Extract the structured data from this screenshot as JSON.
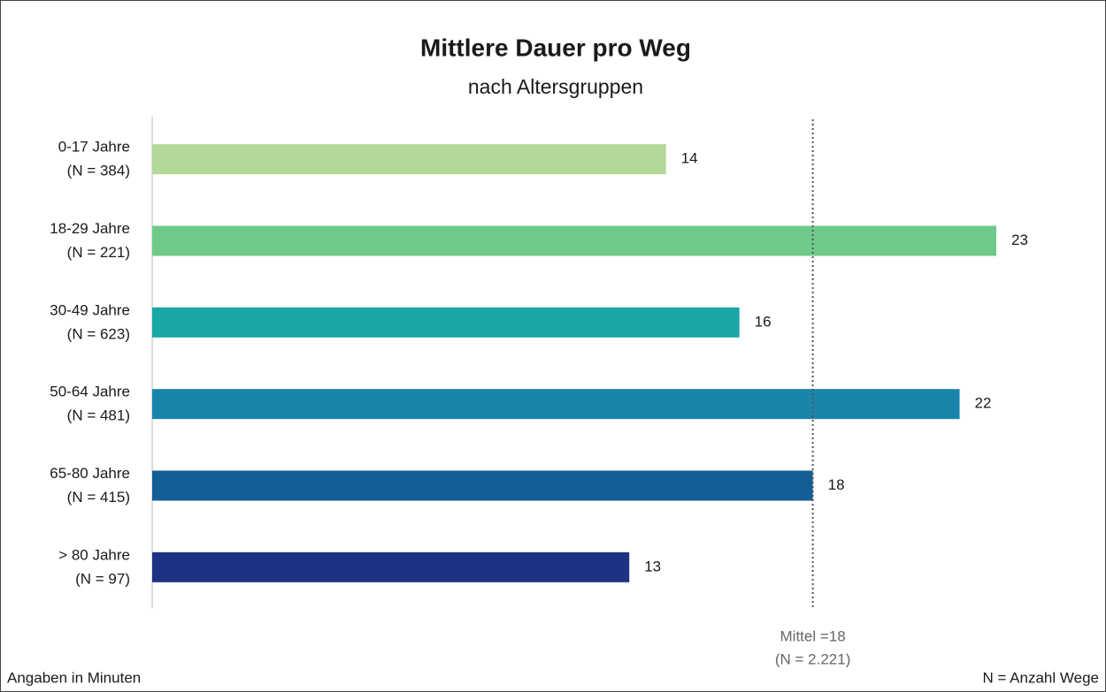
{
  "chart_data": {
    "type": "bar",
    "orientation": "horizontal",
    "title": "Mittlere Dauer pro Weg",
    "subtitle": "nach Altersgruppen",
    "categories": [
      "0-17 Jahre",
      "18-29 Jahre",
      "30-49 Jahre",
      "50-64 Jahre",
      "65-80 Jahre",
      "> 80 Jahre"
    ],
    "category_notes": [
      "(N = 384)",
      "(N = 221)",
      "(N = 623)",
      "(N = 481)",
      "(N = 415)",
      "(N = 97)"
    ],
    "values": [
      14,
      23,
      16,
      22,
      18,
      13
    ],
    "colors": [
      "#b3d898",
      "#6fca8a",
      "#18a6a6",
      "#1a85ab",
      "#145e96",
      "#1d3282"
    ],
    "xlim": [
      0,
      25.7
    ],
    "reference_line": {
      "value": 18,
      "label": "Mittel =18",
      "note": "(N = 2.221)"
    },
    "footnote_left": "Angaben in Minuten",
    "footnote_right": "N = Anzahl Wege"
  }
}
